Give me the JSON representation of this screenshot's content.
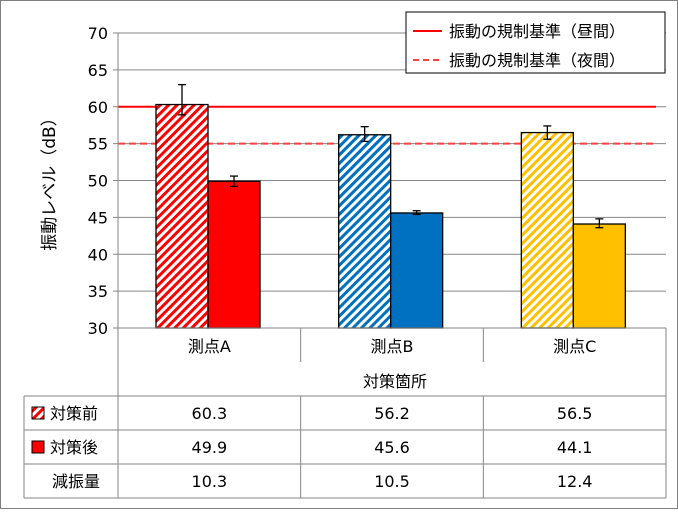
{
  "chart_data": {
    "type": "bar",
    "ylabel": "振動レベル（dB）",
    "xlabel": "対策箇所",
    "ylim": [
      30,
      70
    ],
    "yticks": [
      30,
      35,
      40,
      45,
      50,
      55,
      60,
      65,
      70
    ],
    "categories": [
      "測点A",
      "測点B",
      "測点C"
    ],
    "grid": true,
    "series": [
      {
        "name": "対策前",
        "pattern": "hatched",
        "values": [
          60.3,
          56.2,
          56.5
        ],
        "error_low": [
          58.9,
          55.3,
          55.6
        ],
        "error_high": [
          63.0,
          57.3,
          57.4
        ],
        "colors": [
          "#ff0000",
          "#0070c0",
          "#ffc000"
        ]
      },
      {
        "name": "対策後",
        "pattern": "solid",
        "values": [
          49.9,
          45.6,
          44.1
        ],
        "error_low": [
          49.2,
          45.4,
          43.6
        ],
        "error_high": [
          50.6,
          45.9,
          44.8
        ],
        "colors": [
          "#ff0000",
          "#0070c0",
          "#ffc000"
        ]
      }
    ],
    "reference_lines": [
      {
        "name": "振動の規制基準（昼間）",
        "value": 60,
        "style": "solid",
        "color": "#ff0000"
      },
      {
        "name": "振動の規制基準（夜間）",
        "value": 55,
        "style": "dashed",
        "color": "#ff4040"
      }
    ],
    "legend_position": "top-right",
    "table": {
      "row_labels": [
        "対策前",
        "対策後",
        "減振量"
      ],
      "rows": [
        [
          "60.3",
          "56.2",
          "56.5"
        ],
        [
          "49.9",
          "45.6",
          "44.1"
        ],
        [
          "10.3",
          "10.5",
          "12.4"
        ]
      ]
    }
  }
}
